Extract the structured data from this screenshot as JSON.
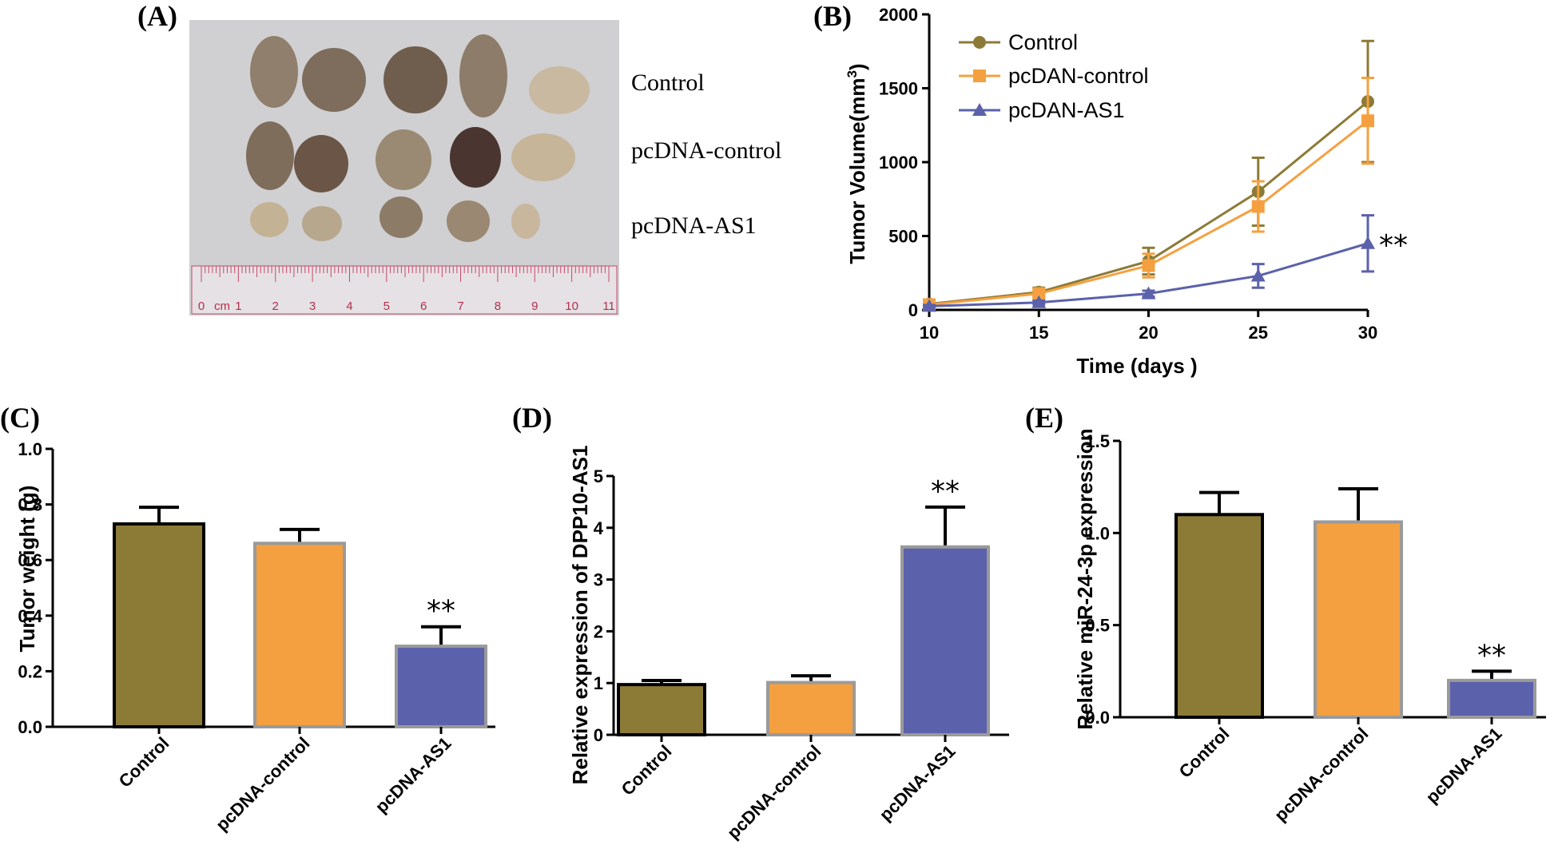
{
  "panel_labels": {
    "a": "(A)",
    "b": "(B)",
    "c": "(C)",
    "d": "(D)",
    "e": "(E)"
  },
  "photo": {
    "row_labels": [
      "Control",
      "pcDNA-control",
      "pcDNA-AS1"
    ],
    "ruler_unit": "cm",
    "ruler_numbers": [
      "0",
      "1",
      "2",
      "3",
      "4",
      "5",
      "6",
      "7",
      "8",
      "9",
      "10",
      "11"
    ]
  },
  "colors": {
    "control": "#8c7b37",
    "pcdna_control": "#f5a040",
    "pcdna_as1": "#5b61ab"
  },
  "chart_data": [
    {
      "id": "B",
      "type": "line",
      "xlabel": "Time (days )",
      "ylabel_main": "Tumor Volume(mm",
      "ylabel_sup": "3",
      "ylabel_end": ")",
      "x": [
        10,
        15,
        20,
        25,
        30
      ],
      "xticks": [
        "10",
        "15",
        "20",
        "25",
        "30"
      ],
      "yticks": [
        "0",
        "500",
        "1000",
        "1500",
        "2000"
      ],
      "ylim": [
        0,
        2000
      ],
      "xlim": [
        10,
        30
      ],
      "legend_position": "top-left",
      "series": [
        {
          "name": "Control",
          "marker": "circle",
          "values": [
            40,
            120,
            330,
            800,
            1410
          ],
          "errors": [
            15,
            30,
            90,
            230,
            410
          ]
        },
        {
          "name": "pcDAN-control",
          "marker": "square",
          "values": [
            35,
            110,
            300,
            700,
            1280
          ],
          "errors": [
            12,
            28,
            80,
            170,
            290
          ]
        },
        {
          "name": "pcDAN-AS1",
          "marker": "triangle",
          "values": [
            25,
            50,
            110,
            230,
            450
          ],
          "errors": [
            8,
            12,
            20,
            80,
            190
          ]
        }
      ],
      "annotation": {
        "text": "**",
        "x": 30
      }
    },
    {
      "id": "C",
      "type": "bar",
      "ylabel": "Tumor weight (g)",
      "categories": [
        "Control",
        "pcDNA-control",
        "pcDNA-AS1"
      ],
      "values": [
        0.73,
        0.66,
        0.29
      ],
      "errors": [
        0.06,
        0.05,
        0.07
      ],
      "yticks": [
        "0.0",
        "0.2",
        "0.4",
        "0.6",
        "0.8",
        "1.0"
      ],
      "ylim": [
        0,
        1.0
      ],
      "annotation": {
        "text": "**",
        "category": "pcDNA-AS1"
      }
    },
    {
      "id": "D",
      "type": "bar",
      "ylabel": "Relative expression of DPP10-AS1",
      "categories": [
        "Control",
        "pcDNA-control",
        "pcDNA-AS1"
      ],
      "values": [
        0.97,
        1.01,
        3.63
      ],
      "errors": [
        0.08,
        0.13,
        0.77
      ],
      "yticks": [
        "0",
        "1",
        "2",
        "3",
        "4",
        "5"
      ],
      "ylim": [
        0,
        5
      ],
      "annotation": {
        "text": "**",
        "category": "pcDNA-AS1"
      }
    },
    {
      "id": "E",
      "type": "bar",
      "ylabel": "Relative miR-24-3p expression",
      "categories": [
        "Control",
        "pcDNA-control",
        "pcDNA-AS1"
      ],
      "values": [
        1.1,
        1.06,
        0.2
      ],
      "errors": [
        0.12,
        0.18,
        0.05
      ],
      "yticks": [
        "0.0",
        "0.5",
        "1.0",
        "1.5"
      ],
      "ylim": [
        0,
        1.5
      ],
      "annotation": {
        "text": "**",
        "category": "pcDNA-AS1"
      }
    }
  ]
}
